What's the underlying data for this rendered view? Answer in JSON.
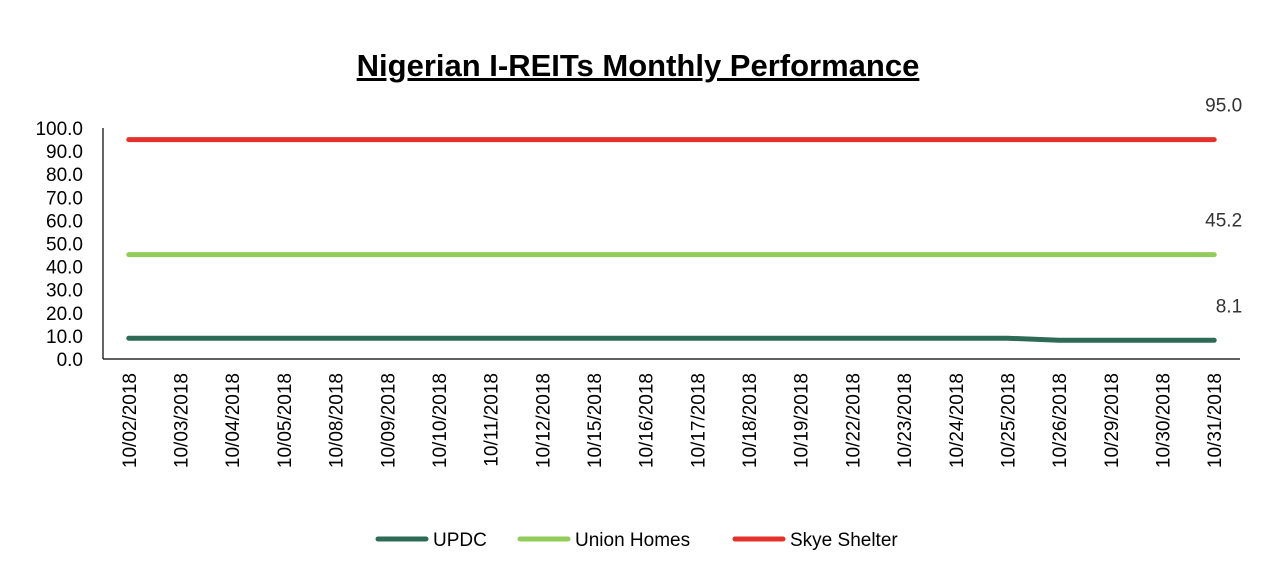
{
  "chart_data": {
    "type": "line",
    "title": "Nigerian I-REITs Monthly Performance",
    "xlabel": "",
    "ylabel": "",
    "ylim": [
      0,
      100
    ],
    "y_ticks": [
      "0.0",
      "10.0",
      "20.0",
      "30.0",
      "40.0",
      "50.0",
      "60.0",
      "70.0",
      "80.0",
      "90.0",
      "100.0"
    ],
    "categories": [
      "10/02/2018",
      "10/03/2018",
      "10/04/2018",
      "10/05/2018",
      "10/08/2018",
      "10/09/2018",
      "10/10/2018",
      "10/11/2018",
      "10/12/2018",
      "10/15/2018",
      "10/16/2018",
      "10/17/2018",
      "10/18/2018",
      "10/19/2018",
      "10/22/2018",
      "10/23/2018",
      "10/24/2018",
      "10/25/2018",
      "10/26/2018",
      "10/29/2018",
      "10/30/2018",
      "10/31/2018"
    ],
    "grid": false,
    "legend_position": "bottom",
    "series": [
      {
        "name": "UPDC",
        "color": "#2e6b57",
        "values": [
          9.0,
          9.0,
          9.0,
          9.0,
          9.0,
          9.0,
          9.0,
          9.0,
          9.0,
          9.0,
          9.0,
          9.0,
          9.0,
          9.0,
          9.0,
          9.0,
          9.0,
          9.0,
          8.1,
          8.1,
          8.1,
          8.1
        ],
        "end_label": "8.1"
      },
      {
        "name": "Union Homes",
        "color": "#92cd5a",
        "values": [
          45.2,
          45.2,
          45.2,
          45.2,
          45.2,
          45.2,
          45.2,
          45.2,
          45.2,
          45.2,
          45.2,
          45.2,
          45.2,
          45.2,
          45.2,
          45.2,
          45.2,
          45.2,
          45.2,
          45.2,
          45.2,
          45.2
        ],
        "end_label": "45.2"
      },
      {
        "name": "Skye Shelter",
        "color": "#e5312b",
        "values": [
          95.0,
          95.0,
          95.0,
          95.0,
          95.0,
          95.0,
          95.0,
          95.0,
          95.0,
          95.0,
          95.0,
          95.0,
          95.0,
          95.0,
          95.0,
          95.0,
          95.0,
          95.0,
          95.0,
          95.0,
          95.0,
          95.0
        ],
        "end_label": "95.0"
      }
    ]
  }
}
